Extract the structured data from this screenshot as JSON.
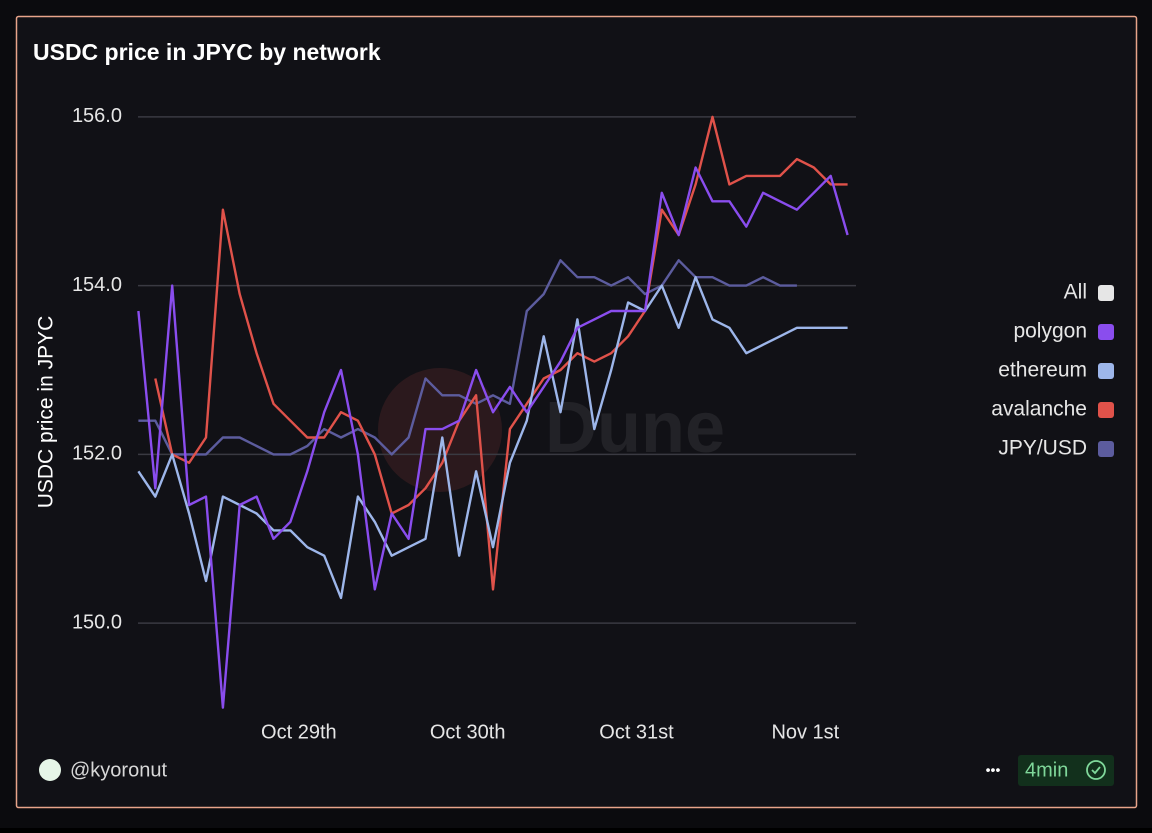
{
  "chart_data": {
    "type": "line",
    "title": "USDC price in JPYC by network",
    "y_label": "USDC price in JPYC",
    "x": [
      28.05,
      28.15,
      28.25,
      28.35,
      28.45,
      28.55,
      28.65,
      28.75,
      28.85,
      28.95,
      29.05,
      29.15,
      29.25,
      29.35,
      29.45,
      29.55,
      29.65,
      29.75,
      29.85,
      29.95,
      30.05,
      30.15,
      30.25,
      30.35,
      30.45,
      30.55,
      30.65,
      30.75,
      30.85,
      30.95,
      31.05,
      31.15,
      31.25,
      31.35,
      31.45,
      31.55,
      31.65,
      31.75,
      31.85,
      31.95,
      32.05,
      32.15,
      32.25
    ],
    "xlim": [
      28.0,
      32.3
    ],
    "xticks": [
      {
        "value": 29,
        "label": "Oct 29th"
      },
      {
        "value": 30,
        "label": "Oct 30th"
      },
      {
        "value": 31,
        "label": "Oct 31st"
      },
      {
        "value": 32,
        "label": "Nov 1st"
      }
    ],
    "ylim": [
      148.9,
      156.2
    ],
    "yticks": [
      {
        "value": 150,
        "label": "150.0"
      },
      {
        "value": 152,
        "label": "152.0"
      },
      {
        "value": 154,
        "label": "154.0"
      },
      {
        "value": 156,
        "label": "156.0"
      }
    ],
    "grid": true,
    "legend_position": "right",
    "legend_all": "All",
    "series": [
      {
        "name": "polygon",
        "color": "#8a4dee",
        "values": [
          153.7,
          151.6,
          154.0,
          151.4,
          151.5,
          149.0,
          151.4,
          151.5,
          151.0,
          151.2,
          151.8,
          152.5,
          153.0,
          152.0,
          150.4,
          151.3,
          151.0,
          152.3,
          152.3,
          152.4,
          153.0,
          152.5,
          152.8,
          152.5,
          152.8,
          153.1,
          153.5,
          153.6,
          153.7,
          153.7,
          153.7,
          155.1,
          154.6,
          155.4,
          155.0,
          155.0,
          154.7,
          155.1,
          155.0,
          154.9,
          155.1,
          155.3,
          154.6
        ]
      },
      {
        "name": "ethereum",
        "color": "#9db6ea",
        "values": [
          151.8,
          151.5,
          152.0,
          151.3,
          150.5,
          151.5,
          151.4,
          151.3,
          151.1,
          151.1,
          150.9,
          150.8,
          150.3,
          151.5,
          151.2,
          150.8,
          150.9,
          151.0,
          152.2,
          150.8,
          151.8,
          150.9,
          151.9,
          152.4,
          153.4,
          152.5,
          153.6,
          152.3,
          153.0,
          153.8,
          153.7,
          154.0,
          153.5,
          154.1,
          153.6,
          153.5,
          153.2,
          153.3,
          153.4,
          153.5,
          153.5,
          153.5,
          153.5
        ]
      },
      {
        "name": "avalanche",
        "color": "#e0524a",
        "values": [
          null,
          152.9,
          152.0,
          151.9,
          152.2,
          154.9,
          153.9,
          153.2,
          152.6,
          152.4,
          152.2,
          152.2,
          152.5,
          152.4,
          152.0,
          151.3,
          151.4,
          151.6,
          151.9,
          152.4,
          152.7,
          150.4,
          152.3,
          152.6,
          152.9,
          153.0,
          153.2,
          153.1,
          153.2,
          153.4,
          153.7,
          154.9,
          154.6,
          155.2,
          156.0,
          155.2,
          155.3,
          155.3,
          155.3,
          155.5,
          155.4,
          155.2,
          155.2
        ]
      },
      {
        "name": "JPY/USD",
        "color": "#5c5c9e",
        "values": [
          152.4,
          152.4,
          152.0,
          152.0,
          152.0,
          152.2,
          152.2,
          152.1,
          152.0,
          152.0,
          152.1,
          152.3,
          152.2,
          152.3,
          152.2,
          152.0,
          152.2,
          152.9,
          152.7,
          152.7,
          152.6,
          152.7,
          152.6,
          153.7,
          153.9,
          154.3,
          154.1,
          154.1,
          154.0,
          154.1,
          153.9,
          154.0,
          154.3,
          154.1,
          154.1,
          154.0,
          154.0,
          154.1,
          154.0,
          154.0,
          null,
          null,
          null
        ]
      }
    ],
    "watermark": "Dune",
    "author": "@kyoronut",
    "more": "•••",
    "refresh": "4min"
  }
}
